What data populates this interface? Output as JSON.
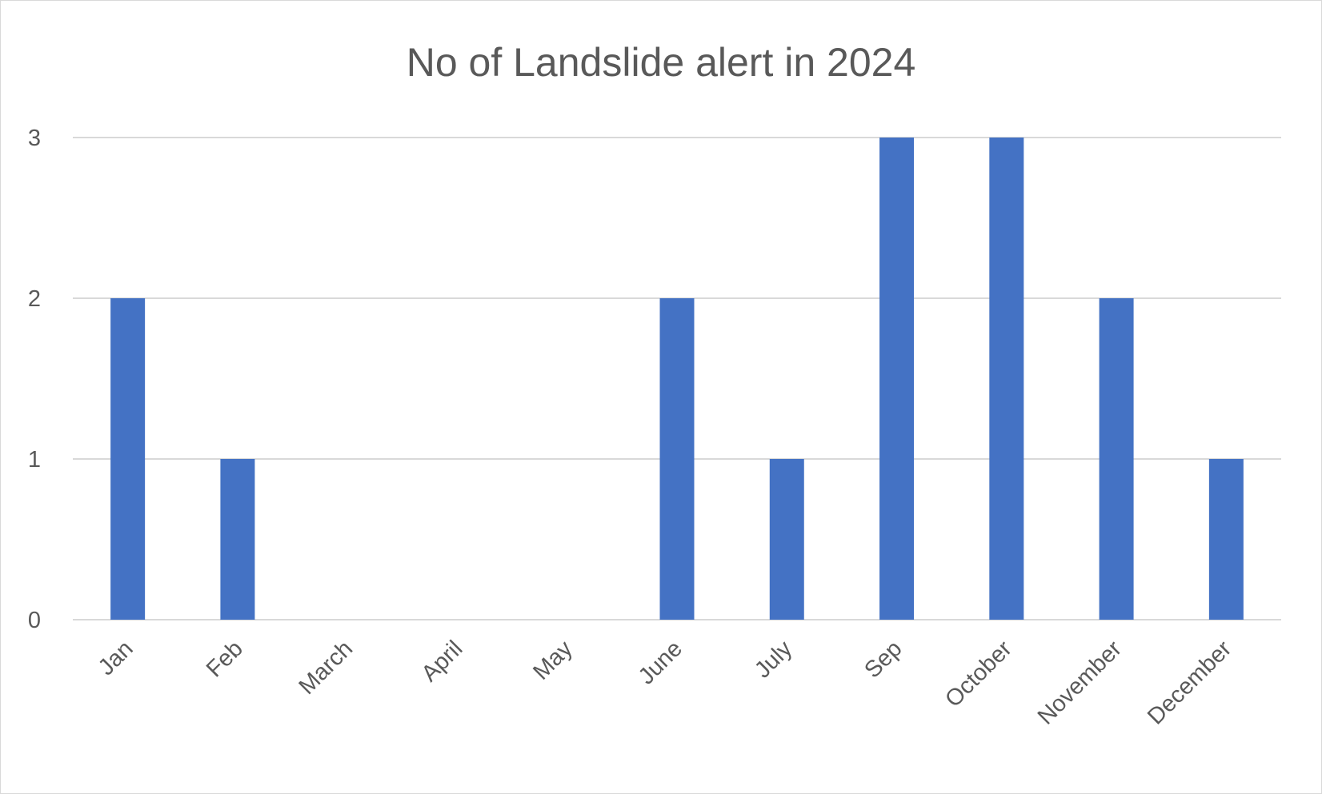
{
  "chart_data": {
    "type": "bar",
    "title": "No of Landslide alert in 2024",
    "xlabel": "",
    "ylabel": "",
    "categories": [
      "Jan",
      "Feb",
      "March",
      "April",
      "May",
      "June",
      "July",
      "Sep",
      "October",
      "November",
      "December"
    ],
    "values": [
      2,
      1,
      0,
      0,
      0,
      2,
      1,
      3,
      3,
      2,
      1
    ],
    "ylim": [
      0,
      3
    ],
    "yticks": [
      0,
      1,
      2,
      3
    ],
    "grid": true,
    "legend": "none",
    "bar_color": "#4472c4"
  }
}
